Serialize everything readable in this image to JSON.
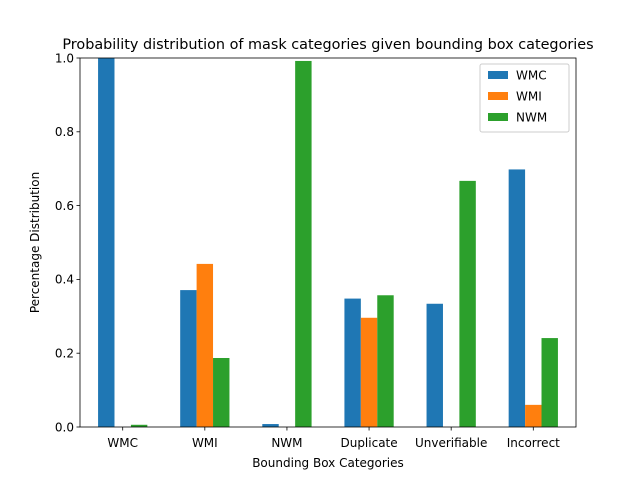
{
  "chart_data": {
    "type": "bar",
    "title": "Probability distribution of mask categories given bounding box categories",
    "xlabel": "Bounding Box Categories",
    "ylabel": "Percentage Distribution",
    "categories": [
      "WMC",
      "WMI",
      "NWM",
      "Duplicate",
      "Unverifiable",
      "Incorrect"
    ],
    "ylim": [
      0,
      1.0
    ],
    "yticks": [
      "0.0",
      "0.2",
      "0.4",
      "0.6",
      "0.8",
      "1.0"
    ],
    "grid": false,
    "legend_position": "top-right",
    "series": [
      {
        "name": "WMC",
        "color": "#1f77b4",
        "values": [
          1.0,
          0.371,
          0.008,
          0.348,
          0.334,
          0.698
        ]
      },
      {
        "name": "WMI",
        "color": "#ff7f0e",
        "values": [
          0.0,
          0.442,
          0.0,
          0.296,
          0.0,
          0.06
        ]
      },
      {
        "name": "NWM",
        "color": "#2ca02c",
        "values": [
          0.006,
          0.187,
          0.992,
          0.357,
          0.667,
          0.241
        ]
      }
    ]
  }
}
